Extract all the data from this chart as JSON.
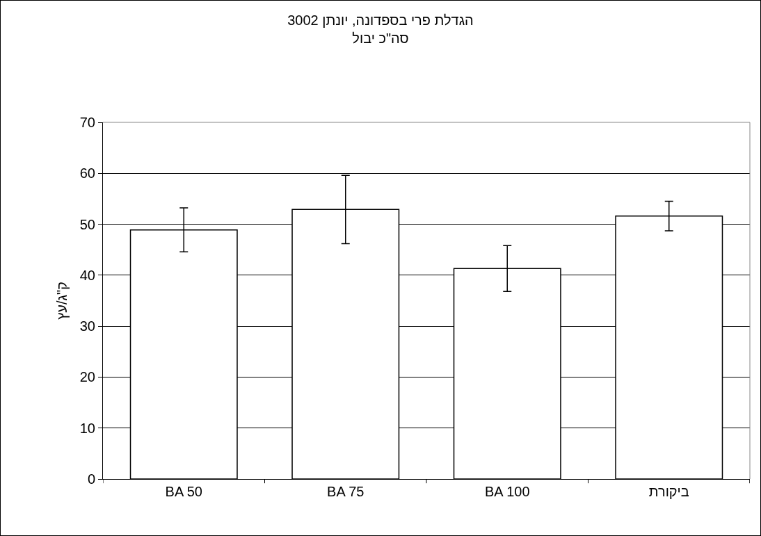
{
  "chart_data": {
    "type": "bar",
    "title": "הגדלת פרי בספדונה, יונתן 3002\nסה\"כ יבול",
    "ylabel": "ק\"ג/עץ",
    "categories": [
      "BA 50",
      "BA 75",
      "BA 100",
      "ביקורת"
    ],
    "values": [
      48.9,
      52.9,
      41.3,
      51.6
    ],
    "errors": [
      4.3,
      6.7,
      4.5,
      2.9
    ],
    "color": "#ffffff",
    "ylim": [
      0,
      70
    ],
    "yticks": [
      0,
      10,
      20,
      30,
      40,
      50,
      60,
      70
    ],
    "grid": "y",
    "legend": false
  }
}
